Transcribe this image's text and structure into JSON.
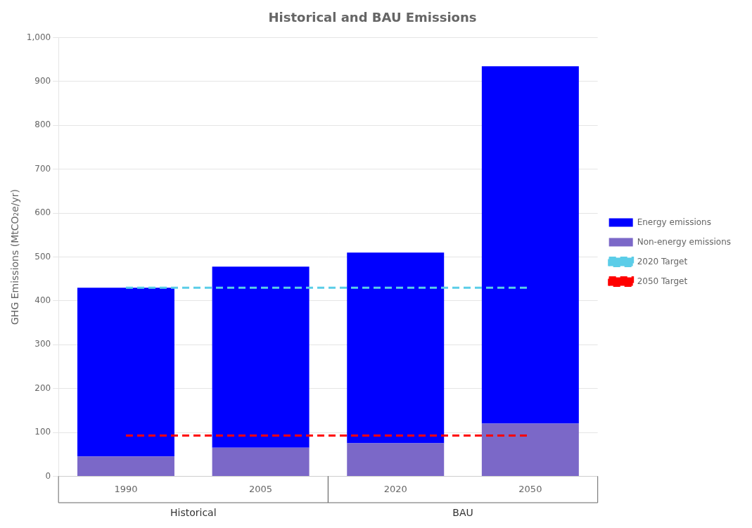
{
  "chart_data": {
    "type": "bar",
    "title": "Historical and BAU Emissions",
    "ylabel": "GHG Emissions (MtCO₂e/yr)",
    "categories": [
      "1990",
      "2005",
      "2020",
      "2050"
    ],
    "series": [
      {
        "name": "Non-energy emissions",
        "color": "#7B68C8",
        "values": [
          45,
          65,
          75,
          120
        ]
      },
      {
        "name": "Energy emissions",
        "color": "#0000FF",
        "values": [
          385,
          413,
          435,
          815
        ]
      },
      {
        "name": "2020 Target",
        "type": "line",
        "line_style": "dashed",
        "color": "#5BCDE8",
        "values": [
          430,
          430,
          430,
          430
        ]
      },
      {
        "name": "2050 Target",
        "type": "line",
        "line_style": "dashed",
        "color": "#FF0000",
        "values": [
          93,
          93,
          93,
          93
        ]
      }
    ],
    "stacked": true,
    "ylim": [
      0,
      1000
    ],
    "yticks": [
      0,
      100,
      200,
      300,
      400,
      500,
      600,
      700,
      800,
      900,
      {
        "value": 1000,
        "label": "1,000"
      }
    ],
    "grid": true,
    "legend": "right",
    "annotations": [
      {
        "text": "Historical",
        "categories": [
          "1990",
          "2005"
        ]
      },
      {
        "text": "BAU",
        "categories": [
          "2020",
          "2050"
        ]
      }
    ]
  }
}
